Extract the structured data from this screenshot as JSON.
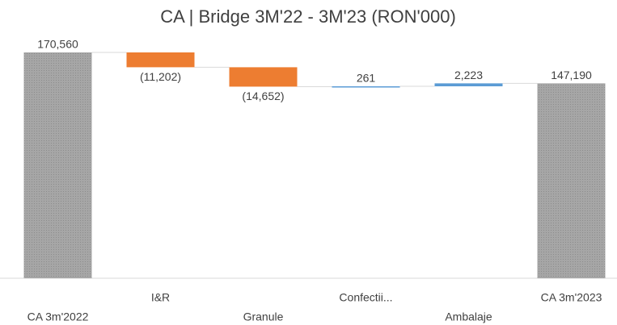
{
  "chart_data": {
    "type": "waterfall",
    "title": "CA | Bridge 3M'22 - 3M'23 (RON'000)",
    "categories": [
      "CA 3m'2022",
      "I&R",
      "Granule",
      "Confectii...",
      "Ambalaje",
      "CA 3m'2023"
    ],
    "values": [
      170560,
      -11202,
      -14652,
      261,
      2223,
      147190
    ],
    "value_labels": [
      "170,560",
      "(11,202)",
      "(14,652)",
      "261",
      "2,223",
      "147,190"
    ],
    "measures": [
      "total",
      "relative",
      "relative",
      "relative",
      "relative",
      "total"
    ],
    "colors": {
      "total": "#a6a6a6",
      "decrease": "#ed7d31",
      "increase": "#5b9bd5"
    }
  }
}
